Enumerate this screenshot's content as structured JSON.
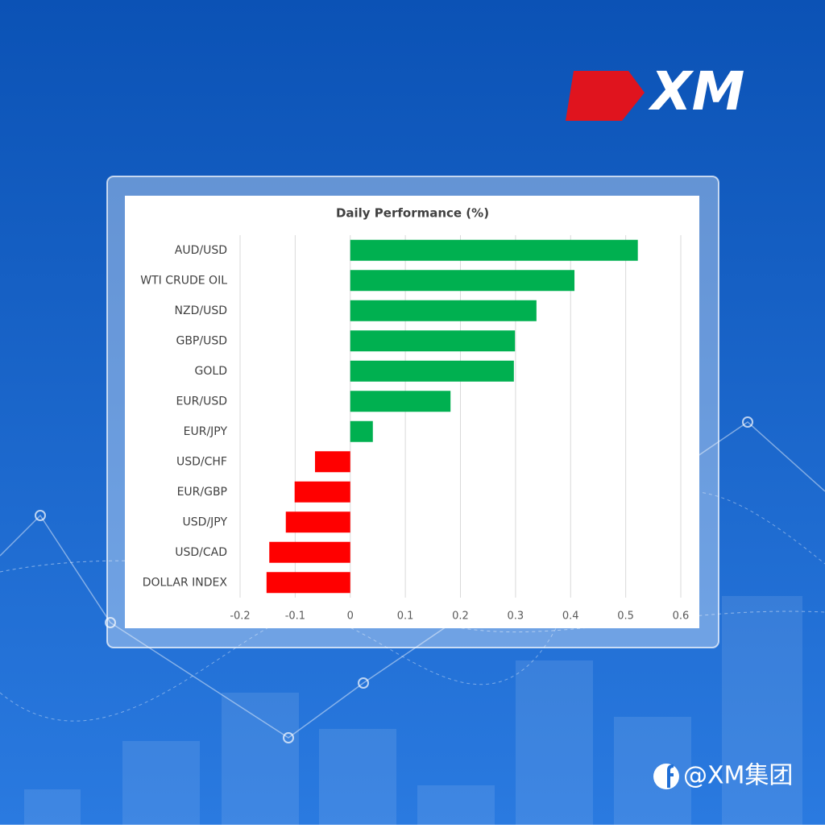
{
  "brand": "XM",
  "social": "@XM集团",
  "chart_data": {
    "type": "bar",
    "orientation": "horizontal",
    "title": "Daily Performance (%)",
    "categories": [
      "AUD/USD",
      "WTI CRUDE OIL",
      "NZD/USD",
      "GBP/USD",
      "GOLD",
      "EUR/USD",
      "EUR/JPY",
      "USD/CHF",
      "EUR/GBP",
      "USD/JPY",
      "USD/CAD",
      "DOLLAR INDEX"
    ],
    "values": [
      0.522,
      0.407,
      0.338,
      0.299,
      0.297,
      0.182,
      0.041,
      -0.064,
      -0.101,
      -0.117,
      -0.147,
      -0.152
    ],
    "color_positive": "#00b050",
    "color_negative": "#ff0000",
    "xlim": [
      -0.2,
      0.6
    ],
    "xticks": [
      -0.2,
      -0.1,
      0,
      0.1,
      0.2,
      0.3,
      0.4,
      0.5,
      0.6
    ],
    "grid": true
  }
}
